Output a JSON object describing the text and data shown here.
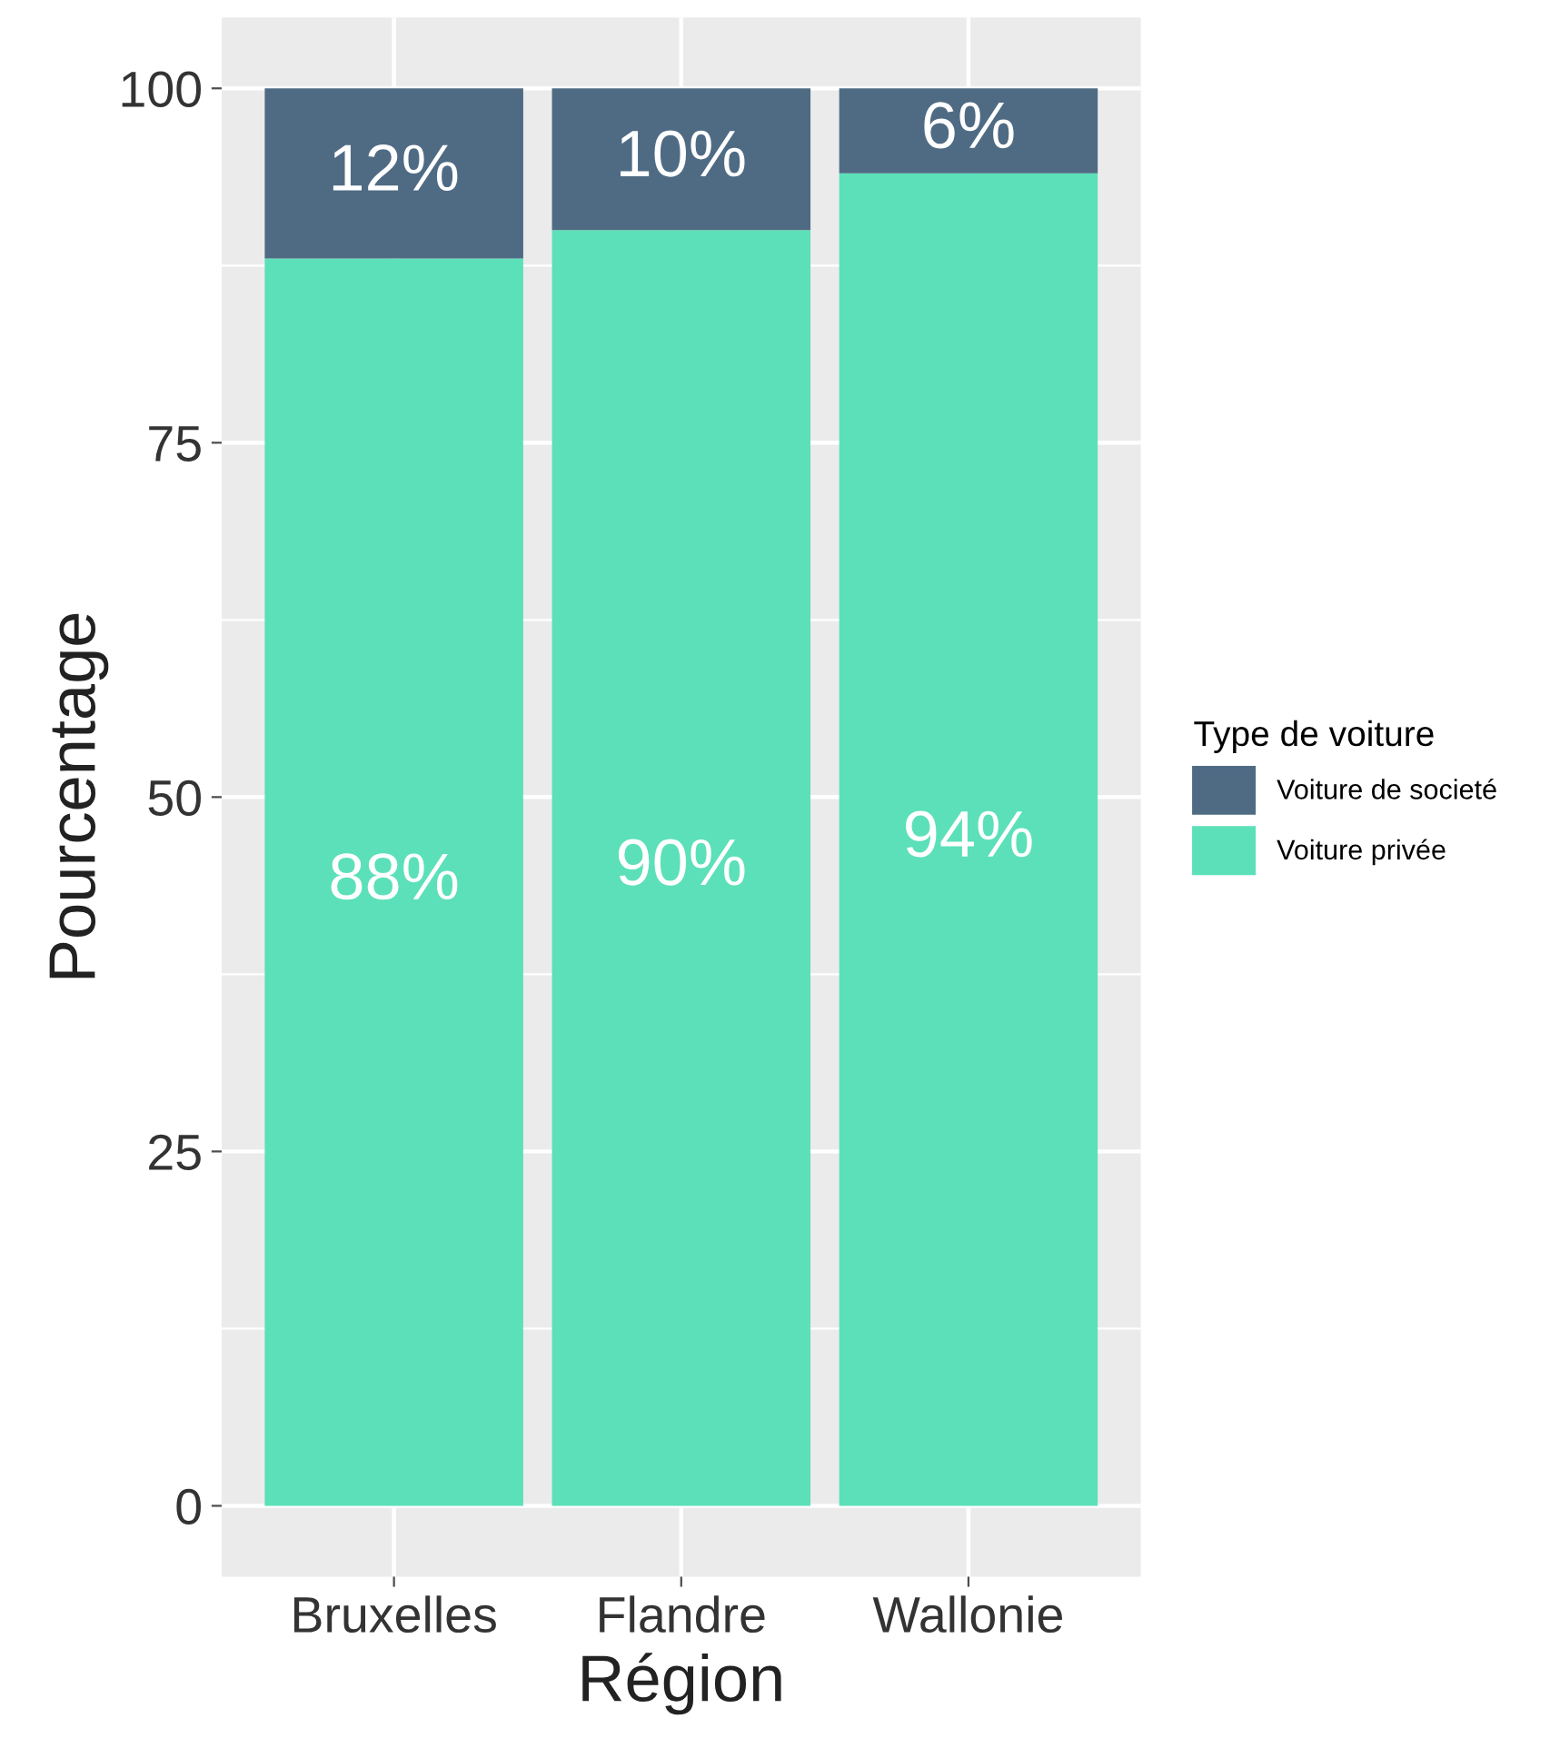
{
  "chart_data": {
    "type": "bar",
    "stacked": true,
    "xlabel": "Région",
    "ylabel": "Pourcentage",
    "legend_title": "Type de voiture",
    "legend": "right",
    "categories": [
      "Bruxelles",
      "Flandre",
      "Wallonie"
    ],
    "series": [
      {
        "name": "Voiture privée",
        "color": "#5ce0b9",
        "values": [
          88,
          90,
          94
        ],
        "value_labels": [
          "88%",
          "90%",
          "94%"
        ]
      },
      {
        "name": "Voiture de societé",
        "color": "#4f6b84",
        "values": [
          12,
          10,
          6
        ],
        "value_labels": [
          "12%",
          "10%",
          "6%"
        ]
      }
    ],
    "ylim": [
      -5,
      105
    ],
    "yticks": [
      0,
      25,
      50,
      75,
      100
    ],
    "grid": true
  }
}
